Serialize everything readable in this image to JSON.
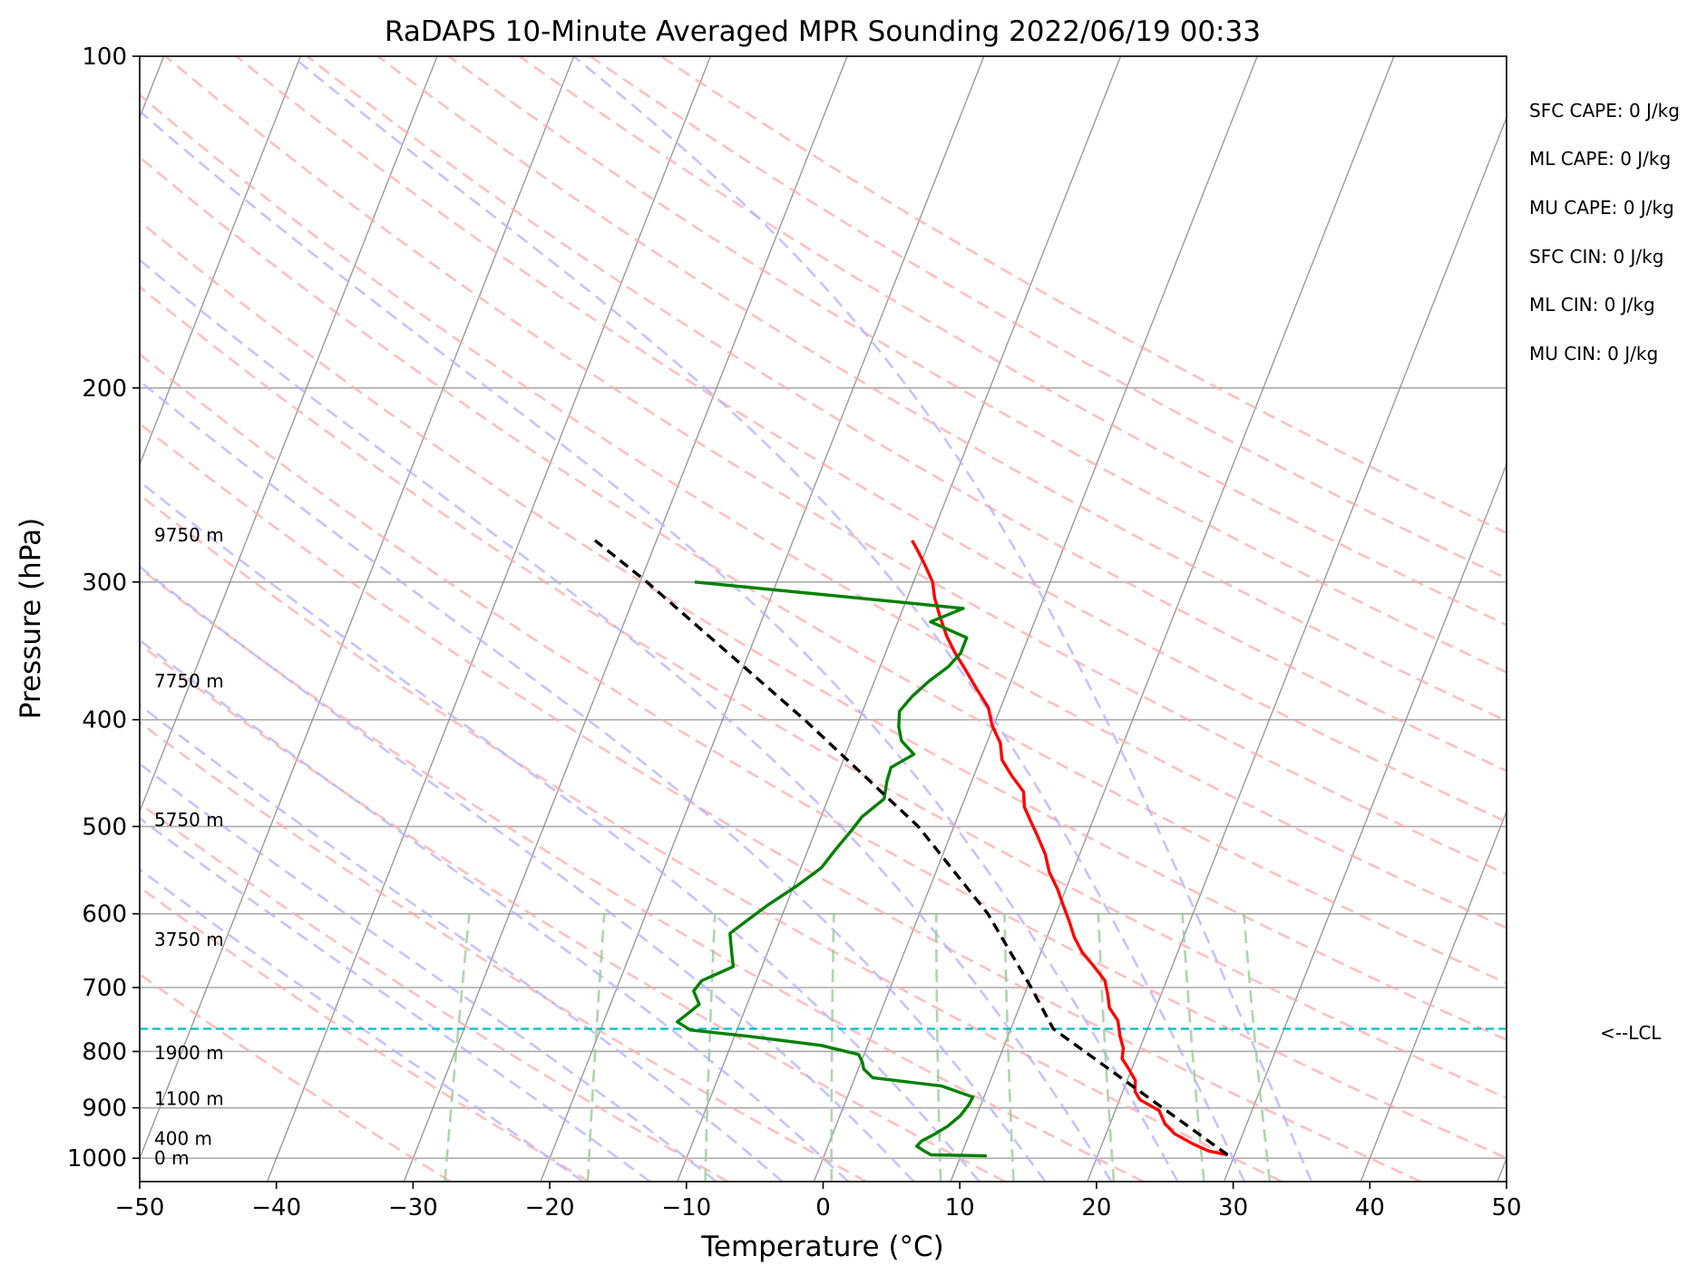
{
  "chart_data": {
    "type": "line",
    "diagram": "skew-T log-P",
    "title": "RaDAPS 10-Minute Averaged MPR Sounding 2022/06/19 00:33",
    "xlabel": "Temperature (°C)",
    "ylabel": "Pressure (hPa)",
    "xlim": [
      -50,
      50
    ],
    "ylim": [
      1050,
      100
    ],
    "y_scale": "log",
    "grid": true,
    "x_ticks": [
      -50,
      -40,
      -30,
      -20,
      -10,
      0,
      10,
      20,
      30,
      40,
      50
    ],
    "x_tick_labels": [
      "−50",
      "−40",
      "−30",
      "−20",
      "−10",
      "0",
      "10",
      "20",
      "30",
      "40",
      "50"
    ],
    "y_ticks": [
      1000,
      900,
      800,
      700,
      600,
      500,
      400,
      300,
      200,
      100
    ],
    "y_tick_labels": [
      "1000",
      "900",
      "800",
      "700",
      "600",
      "500",
      "400",
      "300",
      "200",
      "100"
    ],
    "series": [
      {
        "role": "temperature",
        "color": "#ff0000",
        "points": [
          [
            993,
            29.5
          ],
          [
            985,
            28.0
          ],
          [
            970,
            26.6
          ],
          [
            950,
            25.0
          ],
          [
            930,
            24.0
          ],
          [
            905,
            23.2
          ],
          [
            885,
            21.5
          ],
          [
            870,
            20.9
          ],
          [
            850,
            20.6
          ],
          [
            830,
            19.8
          ],
          [
            812,
            19.0
          ],
          [
            795,
            18.8
          ],
          [
            775,
            18.2
          ],
          [
            750,
            17.6
          ],
          [
            730,
            16.6
          ],
          [
            710,
            16.1
          ],
          [
            690,
            15.5
          ],
          [
            670,
            14.3
          ],
          [
            650,
            13.0
          ],
          [
            630,
            12.0
          ],
          [
            610,
            11.2
          ],
          [
            590,
            10.3
          ],
          [
            570,
            9.4
          ],
          [
            550,
            8.3
          ],
          [
            530,
            7.5
          ],
          [
            510,
            6.4
          ],
          [
            495,
            5.5
          ],
          [
            480,
            4.6
          ],
          [
            465,
            4.1
          ],
          [
            450,
            2.8
          ],
          [
            435,
            1.6
          ],
          [
            420,
            1.0
          ],
          [
            405,
            -0.1
          ],
          [
            390,
            -0.9
          ],
          [
            375,
            -2.3
          ],
          [
            360,
            -3.7
          ],
          [
            348,
            -4.9
          ],
          [
            336,
            -6.0
          ],
          [
            322,
            -7.1
          ],
          [
            310,
            -8.0
          ],
          [
            300,
            -8.6
          ],
          [
            290,
            -9.6
          ],
          [
            280,
            -10.7
          ],
          [
            275,
            -11.3
          ]
        ]
      },
      {
        "role": "dewpoint",
        "color": "#008000",
        "points": [
          [
            995,
            11.9
          ],
          [
            993,
            7.8
          ],
          [
            985,
            7.2
          ],
          [
            975,
            6.5
          ],
          [
            965,
            6.7
          ],
          [
            950,
            7.5
          ],
          [
            935,
            8.2
          ],
          [
            915,
            8.8
          ],
          [
            895,
            9.1
          ],
          [
            880,
            9.2
          ],
          [
            860,
            6.6
          ],
          [
            845,
            1.3
          ],
          [
            830,
            0.4
          ],
          [
            818,
            0.1
          ],
          [
            805,
            -0.4
          ],
          [
            790,
            -3.4
          ],
          [
            775,
            -9.0
          ],
          [
            765,
            -13.4
          ],
          [
            752,
            -14.6
          ],
          [
            740,
            -14.1
          ],
          [
            725,
            -13.5
          ],
          [
            705,
            -14.3
          ],
          [
            690,
            -14.0
          ],
          [
            670,
            -12.1
          ],
          [
            655,
            -12.5
          ],
          [
            640,
            -12.9
          ],
          [
            625,
            -13.3
          ],
          [
            610,
            -12.5
          ],
          [
            590,
            -11.4
          ],
          [
            565,
            -9.7
          ],
          [
            545,
            -8.5
          ],
          [
            525,
            -8.0
          ],
          [
            505,
            -7.4
          ],
          [
            490,
            -7.0
          ],
          [
            472,
            -5.9
          ],
          [
            455,
            -6.2
          ],
          [
            442,
            -6.3
          ],
          [
            430,
            -5.0
          ],
          [
            418,
            -6.3
          ],
          [
            406,
            -6.9
          ],
          [
            393,
            -7.3
          ],
          [
            381,
            -6.8
          ],
          [
            369,
            -6.0
          ],
          [
            358,
            -5.0
          ],
          [
            348,
            -4.5
          ],
          [
            337,
            -4.5
          ],
          [
            326,
            -7.6
          ],
          [
            317,
            -5.6
          ],
          [
            300,
            -26.0
          ]
        ]
      },
      {
        "role": "parcel",
        "color": "#000000",
        "dashed": true,
        "points": [
          [
            993,
            29.5
          ],
          [
            763,
            13.1
          ],
          [
            700,
            10.3
          ],
          [
            600,
            5.0
          ],
          [
            500,
            -2.6
          ],
          [
            400,
            -14.0
          ],
          [
            300,
            -29.5
          ],
          [
            275,
            -34.5
          ]
        ]
      }
    ],
    "lcl_pressure": 763,
    "lcl_label": "<--LCL",
    "height_labels": [
      {
        "p": 1000,
        "text": "0 m"
      },
      {
        "p": 960,
        "text": "400 m"
      },
      {
        "p": 883,
        "text": "1100 m"
      },
      {
        "p": 802,
        "text": "1900 m"
      },
      {
        "p": 633,
        "text": "3750 m"
      },
      {
        "p": 493,
        "text": "5750 m"
      },
      {
        "p": 369,
        "text": "7750 m"
      },
      {
        "p": 272,
        "text": "9750 m"
      }
    ],
    "indices": [
      "SFC CAPE: 0 J/kg",
      "ML CAPE: 0 J/kg",
      "MU CAPE: 0 J/kg",
      "SFC CIN: 0 J/kg",
      "ML CIN: 0 J/kg",
      "MU CIN: 0 J/kg"
    ],
    "dry_adiabats_theta_C": [
      -30,
      -20,
      -10,
      0,
      10,
      20,
      30,
      40,
      50,
      60,
      70,
      80,
      90,
      100,
      110,
      120,
      130,
      140,
      150,
      160,
      170
    ],
    "moist_adiabats_start_C": [
      -20,
      -15,
      -10,
      -5,
      0,
      5,
      10,
      15,
      20,
      25,
      30,
      35
    ],
    "mixing_ratio_lines_g_per_kg": [
      0.4,
      1,
      2,
      4,
      7,
      10,
      16,
      24,
      32
    ],
    "colors": {
      "grid": "#aaaaaa",
      "skew_isotherms": "#888888",
      "dry_adiabats": "#ffaaaa",
      "moist_adiabats": "#b0b0ff",
      "mixing_ratio": "#99cc99",
      "lcl": "#00bfc8"
    }
  }
}
